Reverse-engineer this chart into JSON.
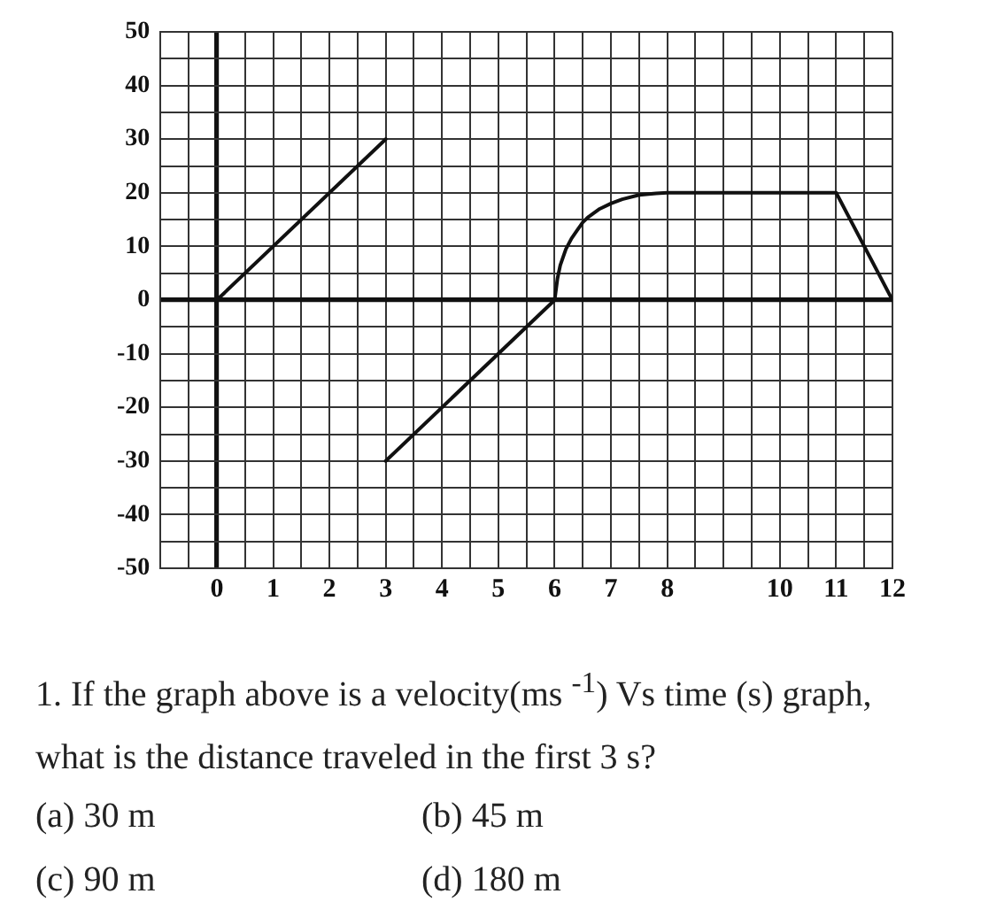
{
  "chart_data": {
    "type": "line",
    "series": [
      {
        "color": "#111111",
        "x": [
          0,
          3
        ],
        "values": [
          0,
          30
        ]
      },
      {
        "color": "#111111",
        "x": [
          3,
          6
        ],
        "values": [
          -30,
          0
        ]
      },
      {
        "color": "#111111",
        "x": [
          6,
          6.05,
          6.1,
          6.2,
          6.3,
          6.4,
          6.5,
          6.6,
          6.8,
          7,
          7.2,
          7.5,
          7.8,
          8,
          11,
          12
        ],
        "values": [
          0,
          4,
          6.5,
          9.5,
          11.5,
          13,
          14.5,
          15.5,
          17,
          18,
          18.8,
          19.6,
          19.9,
          20,
          20,
          0
        ]
      }
    ],
    "xlim": [
      -1,
      12
    ],
    "xticks": [
      {
        "value": -1,
        "label": null
      },
      {
        "value": -0.5,
        "label": null
      },
      0,
      {
        "value": 0.5,
        "label": null
      },
      1,
      {
        "value": 1.5,
        "label": null
      },
      2,
      {
        "value": 2.5,
        "label": null
      },
      3,
      {
        "value": 3.5,
        "label": null
      },
      4,
      {
        "value": 4.5,
        "label": null
      },
      5,
      {
        "value": 5.5,
        "label": null
      },
      6,
      {
        "value": 6.5,
        "label": null
      },
      7,
      {
        "value": 7.5,
        "label": null
      },
      8,
      {
        "value": 8.5,
        "label": null
      },
      {
        "value": 9,
        "label": null
      },
      {
        "value": 9.5,
        "label": null
      },
      10,
      {
        "value": 10.5,
        "label": null
      },
      11,
      {
        "value": 11.5,
        "label": null
      },
      12
    ],
    "ylim": [
      -50,
      50
    ],
    "yticks": [
      -50,
      {
        "value": -45,
        "label": null
      },
      -40,
      {
        "value": -35,
        "label": null
      },
      -30,
      {
        "value": -25,
        "label": null
      },
      -20,
      {
        "value": -15,
        "label": null
      },
      -10,
      {
        "value": -5,
        "label": null
      },
      0,
      {
        "value": 5,
        "label": null
      },
      10,
      {
        "value": 15,
        "label": null
      },
      20,
      {
        "value": 25,
        "label": null
      },
      30,
      {
        "value": 35,
        "label": null
      },
      40,
      {
        "value": 45,
        "label": null
      },
      50
    ],
    "grid": true,
    "legend": false,
    "marker": "none",
    "line_style": "solid",
    "annotations": [
      "1. If the graph above is a velocity(ms $^{-1}$) Vs time (s) graph, what is the distance traveled in the first 3 s?",
      "(a) 30 m",
      "(b) 45 m",
      "(c) 90 m",
      "(d) 180 m"
    ]
  }
}
